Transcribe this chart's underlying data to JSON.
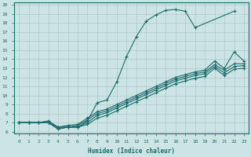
{
  "xlabel": "Humidex (Indice chaleur)",
  "xlim": [
    -0.5,
    23.5
  ],
  "ylim": [
    5.8,
    20.3
  ],
  "yticks": [
    6,
    7,
    8,
    9,
    10,
    11,
    12,
    13,
    14,
    15,
    16,
    17,
    18,
    19,
    20
  ],
  "xticks": [
    0,
    1,
    2,
    3,
    4,
    5,
    6,
    7,
    8,
    9,
    10,
    11,
    12,
    13,
    14,
    15,
    16,
    17,
    18,
    19,
    20,
    21,
    22,
    23
  ],
  "bg_color": "#cde4e4",
  "grid_color": "#b0c8c8",
  "line_color": "#1a6b6b",
  "lines": [
    {
      "x": [
        0,
        1,
        2,
        3,
        4,
        5,
        6,
        7,
        8,
        9,
        10,
        11,
        12,
        13,
        14,
        15,
        16,
        17,
        18,
        22
      ],
      "y": [
        7,
        7,
        7,
        7,
        6.3,
        6.5,
        6.5,
        7.2,
        9.2,
        9.5,
        11.5,
        14.3,
        16.5,
        18.2,
        18.9,
        19.4,
        19.5,
        19.3,
        17.5,
        19.3
      ]
    },
    {
      "x": [
        0,
        1,
        2,
        3,
        4,
        5,
        6,
        7,
        8,
        9,
        10,
        11,
        12,
        13,
        14,
        15,
        16,
        17,
        18,
        19,
        20,
        21,
        22,
        23
      ],
      "y": [
        7.0,
        7.0,
        7.0,
        7.2,
        6.5,
        6.7,
        6.8,
        7.5,
        8.2,
        8.5,
        9.0,
        9.5,
        10.0,
        10.5,
        11.0,
        11.5,
        12.0,
        12.3,
        12.6,
        12.8,
        13.8,
        13.0,
        14.8,
        13.8
      ]
    },
    {
      "x": [
        0,
        1,
        2,
        3,
        4,
        5,
        6,
        7,
        8,
        9,
        10,
        11,
        12,
        13,
        14,
        15,
        16,
        17,
        18,
        19,
        20,
        21,
        22,
        23
      ],
      "y": [
        7.0,
        7.0,
        7.0,
        7.0,
        6.5,
        6.5,
        6.7,
        7.3,
        8.0,
        8.3,
        8.8,
        9.3,
        9.8,
        10.3,
        10.8,
        11.3,
        11.8,
        12.1,
        12.4,
        12.6,
        13.4,
        12.8,
        13.5,
        13.5
      ]
    },
    {
      "x": [
        0,
        1,
        2,
        3,
        4,
        5,
        6,
        7,
        8,
        9,
        10,
        11,
        12,
        13,
        14,
        15,
        16,
        17,
        18,
        19,
        20,
        21,
        22,
        23
      ],
      "y": [
        7.0,
        7.0,
        7.0,
        7.0,
        6.5,
        6.5,
        6.5,
        7.0,
        7.8,
        8.1,
        8.6,
        9.1,
        9.6,
        10.1,
        10.6,
        11.1,
        11.6,
        11.9,
        12.2,
        12.4,
        13.2,
        12.5,
        13.2,
        13.3
      ]
    },
    {
      "x": [
        0,
        1,
        2,
        3,
        4,
        5,
        6,
        7,
        8,
        9,
        10,
        11,
        12,
        13,
        14,
        15,
        16,
        17,
        18,
        19,
        20,
        21,
        22,
        23
      ],
      "y": [
        7.0,
        7.0,
        7.0,
        7.0,
        6.3,
        6.5,
        6.5,
        6.8,
        7.5,
        7.8,
        8.3,
        8.8,
        9.3,
        9.8,
        10.3,
        10.8,
        11.3,
        11.6,
        11.9,
        12.1,
        13.0,
        12.2,
        12.9,
        13.0
      ]
    }
  ]
}
